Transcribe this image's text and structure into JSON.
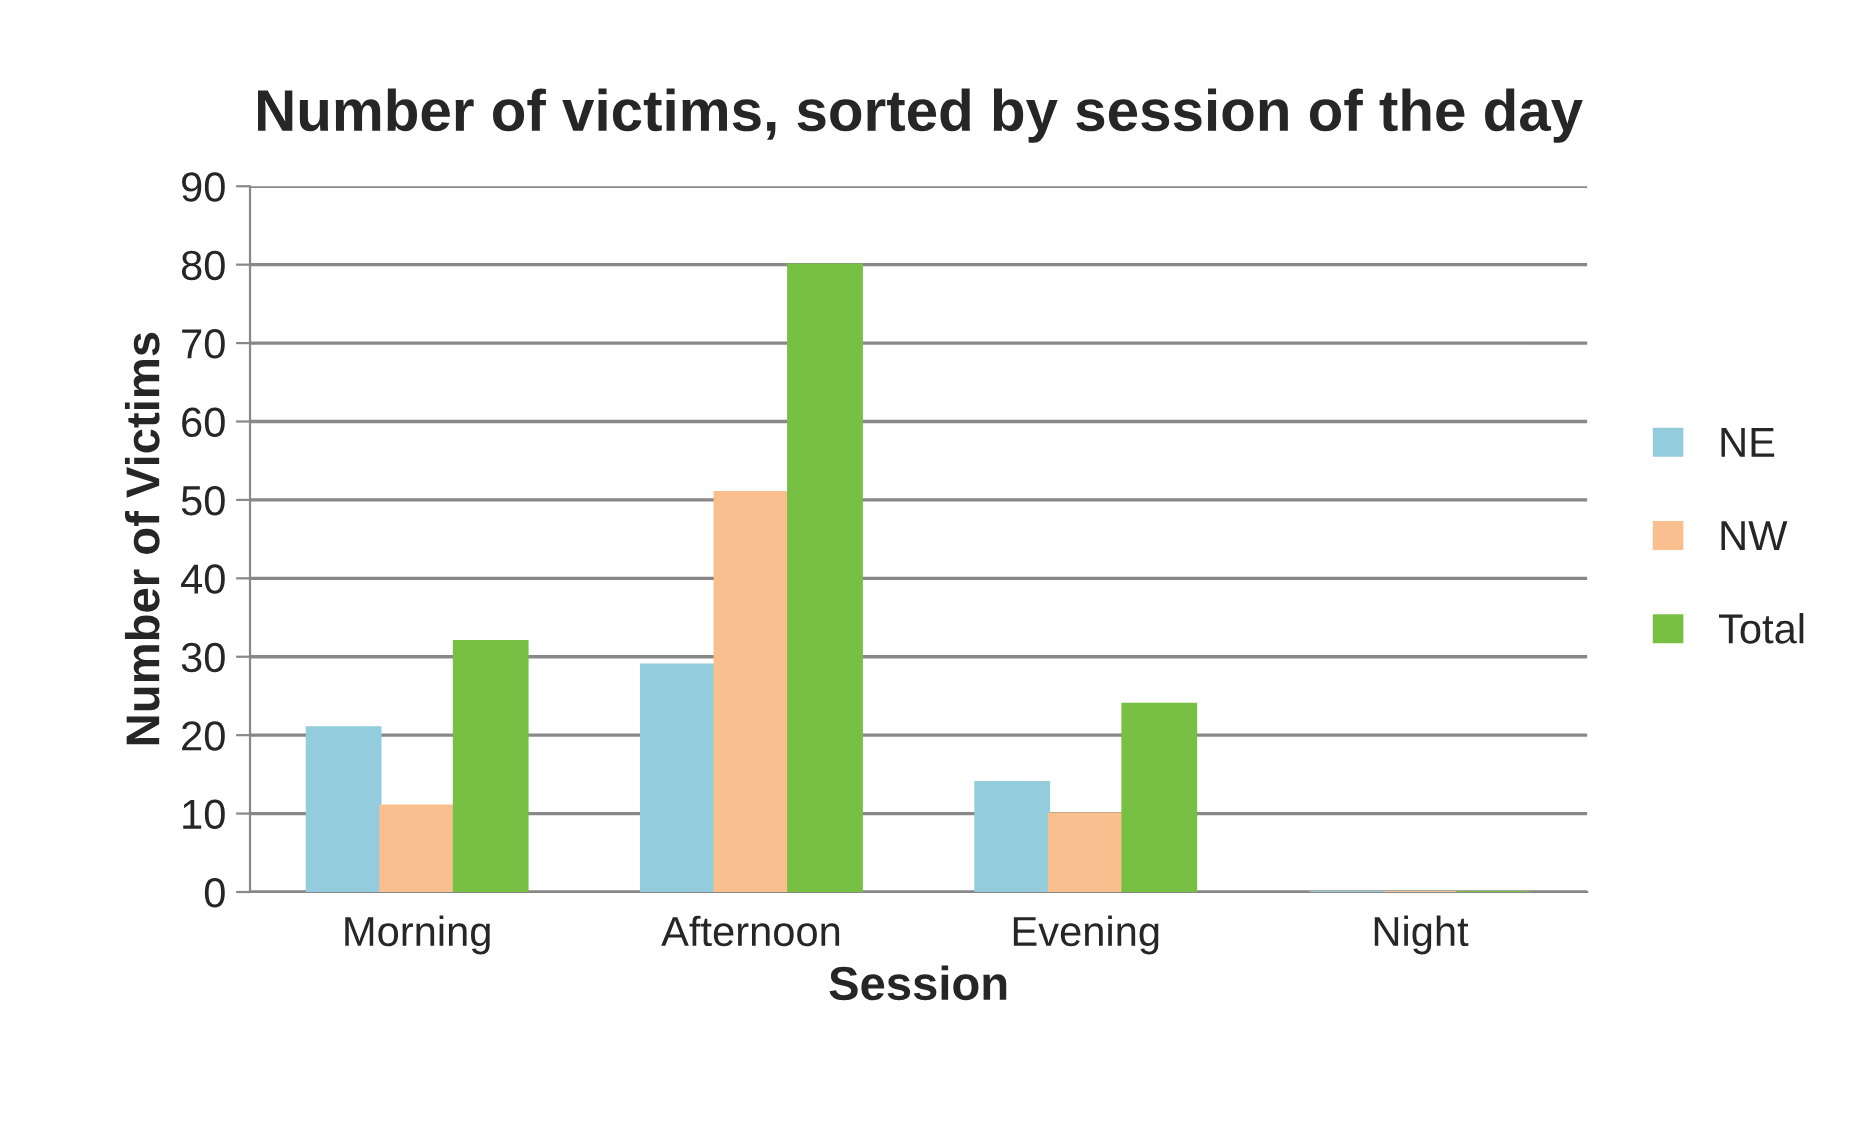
{
  "chart_data": {
    "type": "bar",
    "title": "Number of victims, sorted by session of the day",
    "xlabel": "Session",
    "ylabel": "Number of Victims",
    "categories": [
      "Morning",
      "Afternoon",
      "Evening",
      "Night"
    ],
    "series": [
      {
        "name": "NE",
        "color": "#93cddd",
        "values": [
          21,
          29,
          14,
          0
        ]
      },
      {
        "name": "NW",
        "color": "#f9bf8f",
        "values": [
          11,
          51,
          10,
          0
        ]
      },
      {
        "name": "Total",
        "color": "#77c043",
        "values": [
          32,
          80,
          24,
          0
        ]
      }
    ],
    "ylim": [
      0,
      90
    ],
    "yticks": [
      0,
      10,
      20,
      30,
      40,
      50,
      60,
      70,
      80,
      90
    ],
    "grid": "y",
    "legend": "right"
  }
}
